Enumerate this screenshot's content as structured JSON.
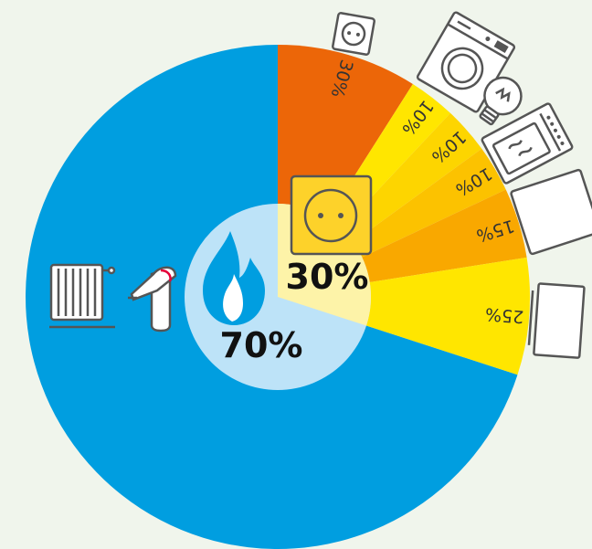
{
  "colors": {
    "background": "#f0f5ec",
    "gas": "#009ee0",
    "gas_center": "#bde3f8",
    "electric_center": "#fdf3a8",
    "electric_badge": "#fdd22a",
    "flame": "#009ee0"
  },
  "chart_data": {
    "type": "pie",
    "title": "",
    "main": [
      {
        "label": "70%",
        "value": 70,
        "color": "#009ee0",
        "icon": "gas-flame-icon"
      },
      {
        "label": "30%",
        "value": 30,
        "color": "#fdd22a",
        "icon": "power-socket-icon"
      }
    ],
    "electric_breakdown": [
      {
        "label": "30%",
        "value": 30,
        "color": "#ec6608",
        "icon": "power-socket-icon"
      },
      {
        "label": "10%",
        "value": 10,
        "color": "#ffe600",
        "icon": "washing-machine-icon"
      },
      {
        "label": "10%",
        "value": 10,
        "color": "#fdd500",
        "icon": "light-bulb-icon"
      },
      {
        "label": "10%",
        "value": 10,
        "color": "#fcc200",
        "icon": "oven-icon"
      },
      {
        "label": "15%",
        "value": 15,
        "color": "#f9a800",
        "icon": "refrigerator-icon"
      },
      {
        "label": "25%",
        "value": 25,
        "color": "#ffe600",
        "icon": "tv-icon"
      }
    ],
    "gas_icons": [
      "radiator-icon",
      "water-tap-icon"
    ]
  }
}
